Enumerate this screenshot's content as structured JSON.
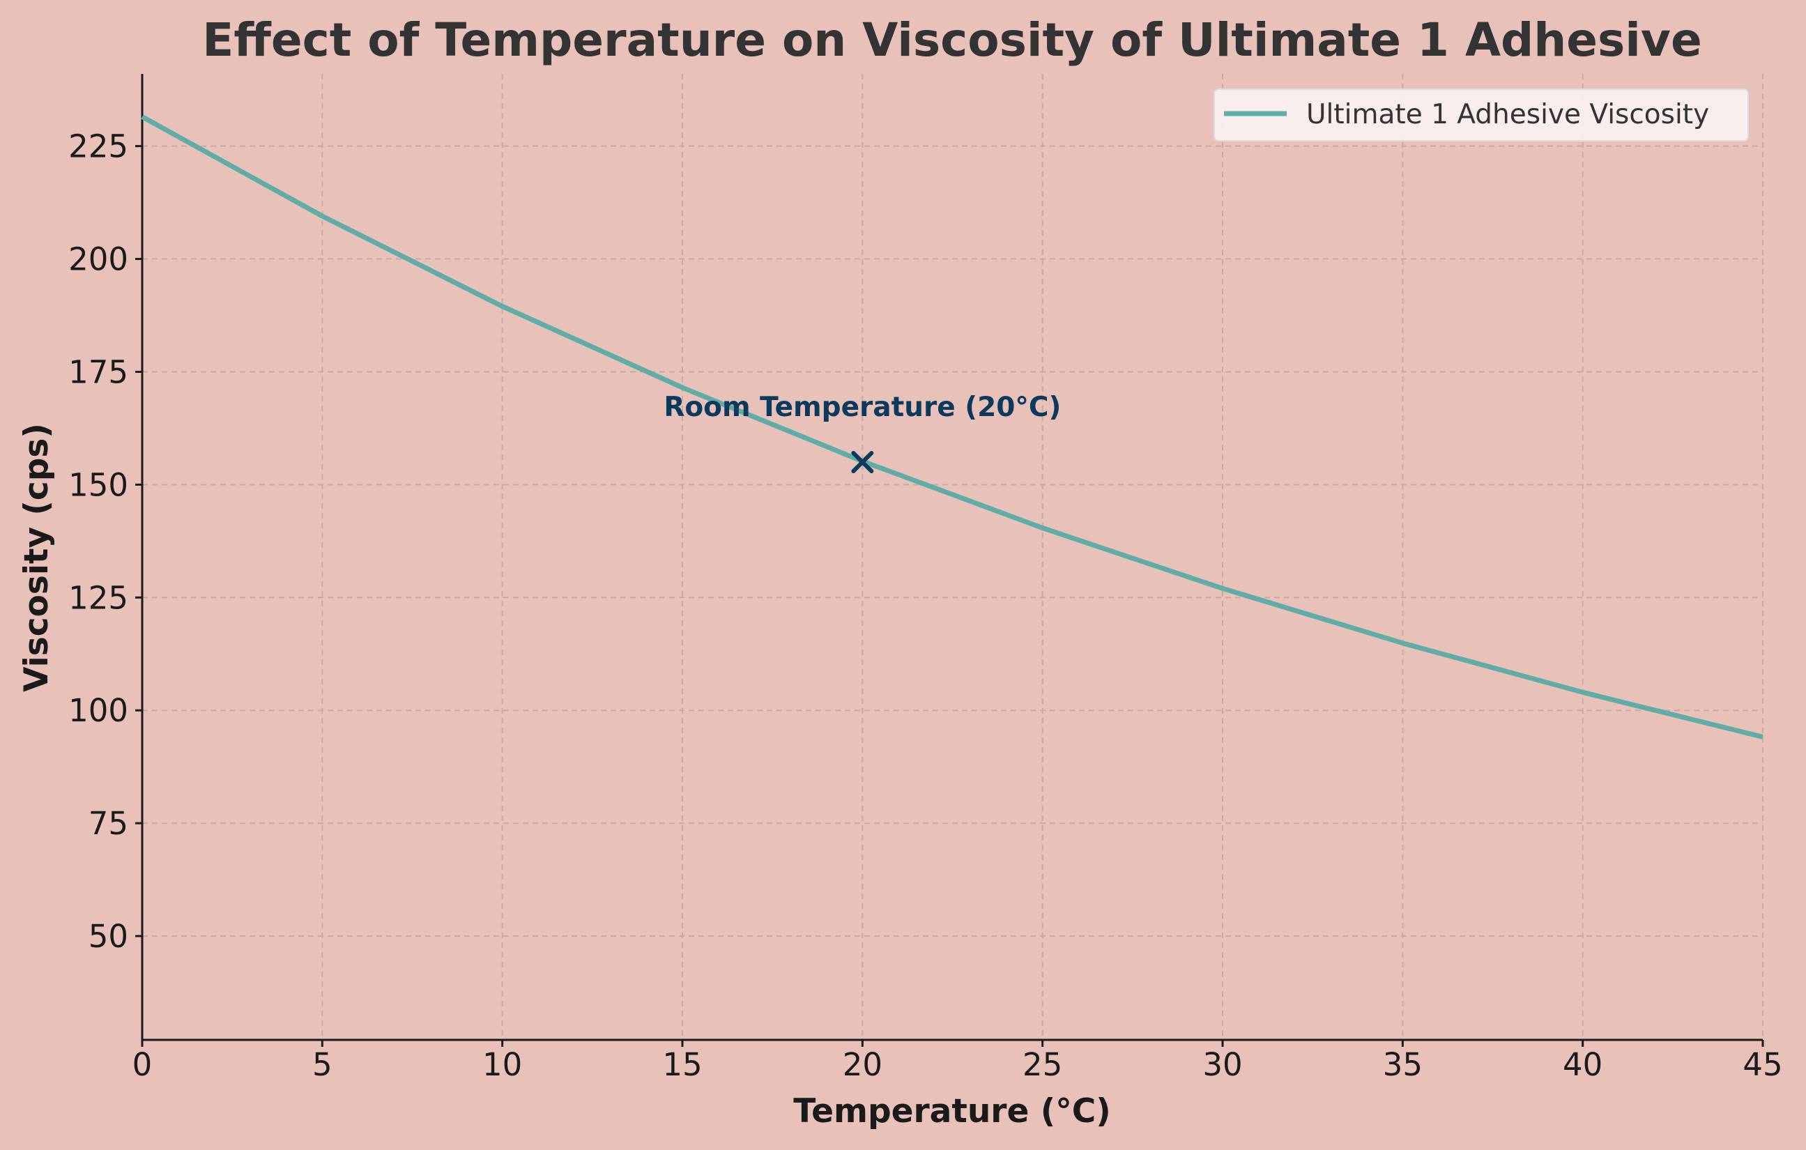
{
  "chart_data": {
    "type": "line",
    "title": "Effect of Temperature on Viscosity of Ultimate 1 Adhesive",
    "xlabel": "Temperature (°C)",
    "ylabel": "Viscosity (cps)",
    "xlim": [
      0,
      45
    ],
    "ylim": [
      27,
      241
    ],
    "x_ticks": [
      0,
      5,
      10,
      15,
      20,
      25,
      30,
      35,
      40,
      45
    ],
    "y_ticks": [
      50,
      75,
      100,
      125,
      150,
      175,
      200,
      225
    ],
    "grid": true,
    "legend_position": "top-right",
    "series": [
      {
        "name": "Ultimate 1 Adhesive Viscosity",
        "color": "#5fada5",
        "x": [
          0,
          5,
          10,
          15,
          20,
          25,
          30,
          35,
          40,
          45
        ],
        "y": [
          231.5,
          209.5,
          189.5,
          171.5,
          155.2,
          140.4,
          127.0,
          114.9,
          104.0,
          94.1
        ]
      }
    ],
    "annotations": [
      {
        "text": "Room Temperature (20°C)",
        "point": [
          20,
          155
        ],
        "marker": "x",
        "color": "#0b3a5c"
      }
    ]
  }
}
